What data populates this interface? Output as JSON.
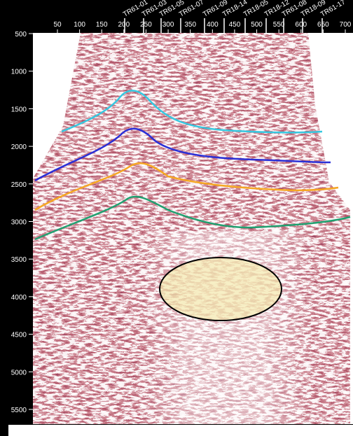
{
  "top_axis": {
    "ticks": [
      "50",
      "100",
      "150",
      "200",
      "250",
      "300",
      "350",
      "400",
      "450",
      "500",
      "550",
      "600",
      "650",
      "700"
    ]
  },
  "left_axis": {
    "ticks": [
      "500",
      "1000",
      "1500",
      "2000",
      "2500",
      "3000",
      "3500",
      "4000",
      "4500",
      "5000",
      "5500"
    ]
  },
  "wells": [
    "TR61-01",
    "TR61-03",
    "TR61-05",
    "TR61-07",
    "TR61-09",
    "TR18-14",
    "TR18-05",
    "TR18-12",
    "TR61-08",
    "TR18-09",
    "TR61-17"
  ]
}
